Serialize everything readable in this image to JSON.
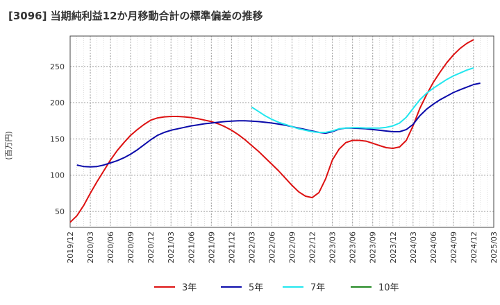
{
  "chart_data": {
    "type": "line",
    "title": "[3096]  当期純利益12か月移動合計の標準偏差の推移",
    "ylabel": "(百万円)",
    "xlabel": "",
    "ylim": [
      28,
      292
    ],
    "yticks": [
      50,
      100,
      150,
      200,
      250
    ],
    "x_ticks": [
      "2019/12",
      "2020/03",
      "2020/06",
      "2020/09",
      "2020/12",
      "2021/03",
      "2021/06",
      "2021/09",
      "2021/12",
      "2022/03",
      "2022/06",
      "2022/09",
      "2022/12",
      "2023/03",
      "2023/06",
      "2023/09",
      "2023/12",
      "2024/03",
      "2024/06",
      "2024/09",
      "2024/12",
      "2025/03"
    ],
    "grid": true,
    "legend_position": "bottom",
    "series": [
      {
        "name": "3年",
        "color": "#dd1111",
        "points": [
          [
            "2019/12",
            35
          ],
          [
            "2020/01",
            44
          ],
          [
            "2020/02",
            58
          ],
          [
            "2020/03",
            75
          ],
          [
            "2020/04",
            91
          ],
          [
            "2020/05",
            106
          ],
          [
            "2020/06",
            121
          ],
          [
            "2020/07",
            134
          ],
          [
            "2020/08",
            145
          ],
          [
            "2020/09",
            155
          ],
          [
            "2020/10",
            163
          ],
          [
            "2020/11",
            170
          ],
          [
            "2020/12",
            176
          ],
          [
            "2021/01",
            179
          ],
          [
            "2021/02",
            180.5
          ],
          [
            "2021/03",
            181
          ],
          [
            "2021/04",
            181
          ],
          [
            "2021/05",
            180.5
          ],
          [
            "2021/06",
            179.5
          ],
          [
            "2021/07",
            178
          ],
          [
            "2021/08",
            176
          ],
          [
            "2021/09",
            174
          ],
          [
            "2021/10",
            171
          ],
          [
            "2021/11",
            167
          ],
          [
            "2021/12",
            162
          ],
          [
            "2022/01",
            156
          ],
          [
            "2022/02",
            149
          ],
          [
            "2022/03",
            141
          ],
          [
            "2022/04",
            133
          ],
          [
            "2022/05",
            124
          ],
          [
            "2022/06",
            115
          ],
          [
            "2022/07",
            106
          ],
          [
            "2022/08",
            96
          ],
          [
            "2022/09",
            86
          ],
          [
            "2022/10",
            77
          ],
          [
            "2022/11",
            71
          ],
          [
            "2022/12",
            69
          ],
          [
            "2023/01",
            76
          ],
          [
            "2023/02",
            95
          ],
          [
            "2023/03",
            121
          ],
          [
            "2023/04",
            136
          ],
          [
            "2023/05",
            145
          ],
          [
            "2023/06",
            148
          ],
          [
            "2023/07",
            148
          ],
          [
            "2023/08",
            147
          ],
          [
            "2023/09",
            144
          ],
          [
            "2023/10",
            141
          ],
          [
            "2023/11",
            138
          ],
          [
            "2023/12",
            137
          ],
          [
            "2024/01",
            139
          ],
          [
            "2024/02",
            148
          ],
          [
            "2024/03",
            168
          ],
          [
            "2024/04",
            192
          ],
          [
            "2024/05",
            211
          ],
          [
            "2024/06",
            228
          ],
          [
            "2024/07",
            242
          ],
          [
            "2024/08",
            255
          ],
          [
            "2024/09",
            266
          ],
          [
            "2024/10",
            275
          ],
          [
            "2024/11",
            282
          ],
          [
            "2024/12",
            287
          ]
        ]
      },
      {
        "name": "5年",
        "color": "#0a0aaa",
        "points": [
          [
            "2020/01",
            114
          ],
          [
            "2020/02",
            112
          ],
          [
            "2020/03",
            111.5
          ],
          [
            "2020/04",
            112
          ],
          [
            "2020/05",
            114
          ],
          [
            "2020/06",
            117
          ],
          [
            "2020/07",
            120
          ],
          [
            "2020/08",
            124
          ],
          [
            "2020/09",
            129
          ],
          [
            "2020/10",
            135
          ],
          [
            "2020/11",
            142
          ],
          [
            "2020/12",
            149
          ],
          [
            "2021/01",
            155
          ],
          [
            "2021/02",
            159
          ],
          [
            "2021/03",
            162
          ],
          [
            "2021/04",
            164
          ],
          [
            "2021/05",
            166
          ],
          [
            "2021/06",
            168
          ],
          [
            "2021/07",
            169.5
          ],
          [
            "2021/08",
            171
          ],
          [
            "2021/09",
            172
          ],
          [
            "2021/10",
            173
          ],
          [
            "2021/11",
            174
          ],
          [
            "2021/12",
            174.5
          ],
          [
            "2022/01",
            175
          ],
          [
            "2022/02",
            175
          ],
          [
            "2022/03",
            174.5
          ],
          [
            "2022/04",
            174
          ],
          [
            "2022/05",
            173
          ],
          [
            "2022/06",
            172
          ],
          [
            "2022/07",
            170.5
          ],
          [
            "2022/08",
            169
          ],
          [
            "2022/09",
            167
          ],
          [
            "2022/10",
            165
          ],
          [
            "2022/11",
            163
          ],
          [
            "2022/12",
            161
          ],
          [
            "2023/01",
            159
          ],
          [
            "2023/02",
            158
          ],
          [
            "2023/03",
            160
          ],
          [
            "2023/04",
            163.5
          ],
          [
            "2023/05",
            165
          ],
          [
            "2023/06",
            165
          ],
          [
            "2023/07",
            164.5
          ],
          [
            "2023/08",
            164
          ],
          [
            "2023/09",
            163
          ],
          [
            "2023/10",
            162
          ],
          [
            "2023/11",
            161
          ],
          [
            "2023/12",
            160
          ],
          [
            "2024/01",
            160
          ],
          [
            "2024/02",
            163
          ],
          [
            "2024/03",
            170
          ],
          [
            "2024/04",
            182
          ],
          [
            "2024/05",
            191
          ],
          [
            "2024/06",
            198
          ],
          [
            "2024/07",
            204
          ],
          [
            "2024/08",
            209
          ],
          [
            "2024/09",
            214
          ],
          [
            "2024/10",
            218
          ],
          [
            "2024/11",
            221.5
          ],
          [
            "2024/12",
            225
          ],
          [
            "2025/01",
            227
          ]
        ]
      },
      {
        "name": "7年",
        "color": "#22e6ee",
        "points": [
          [
            "2022/03",
            194
          ],
          [
            "2022/04",
            188
          ],
          [
            "2022/05",
            182
          ],
          [
            "2022/06",
            177
          ],
          [
            "2022/07",
            173
          ],
          [
            "2022/08",
            170
          ],
          [
            "2022/09",
            167
          ],
          [
            "2022/10",
            164
          ],
          [
            "2022/11",
            162
          ],
          [
            "2022/12",
            160
          ],
          [
            "2023/01",
            159
          ],
          [
            "2023/02",
            159
          ],
          [
            "2023/03",
            161
          ],
          [
            "2023/04",
            164
          ],
          [
            "2023/05",
            165
          ],
          [
            "2023/06",
            165.5
          ],
          [
            "2023/07",
            165.5
          ],
          [
            "2023/08",
            165
          ],
          [
            "2023/09",
            165
          ],
          [
            "2023/10",
            165
          ],
          [
            "2023/11",
            166
          ],
          [
            "2023/12",
            168
          ],
          [
            "2024/01",
            172
          ],
          [
            "2024/02",
            180
          ],
          [
            "2024/03",
            192
          ],
          [
            "2024/04",
            204
          ],
          [
            "2024/05",
            213
          ],
          [
            "2024/06",
            220
          ],
          [
            "2024/07",
            226
          ],
          [
            "2024/08",
            232
          ],
          [
            "2024/09",
            237
          ],
          [
            "2024/10",
            241
          ],
          [
            "2024/11",
            245
          ],
          [
            "2024/12",
            248
          ]
        ]
      },
      {
        "name": "10年",
        "color": "#228822",
        "points": []
      }
    ]
  }
}
